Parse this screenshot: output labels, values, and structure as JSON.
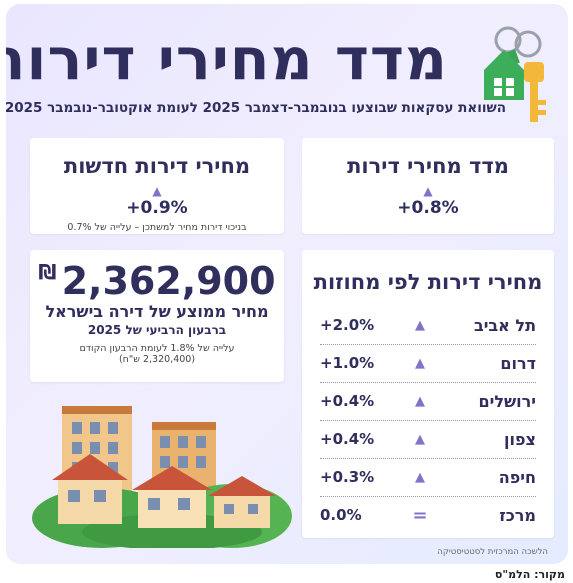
{
  "header": {
    "title": "מדד מחירי דירות",
    "subtitle": "השוואת עסקאות שבוצעו בנובמבר-דצמבר 2025 לעומת אוקטובר-נובמבר 2025"
  },
  "index_panel": {
    "title": "מדד מחירי דירות",
    "value": "+0.8%"
  },
  "new_panel": {
    "title": "מחירי דירות חדשות",
    "value": "+0.9%",
    "note": "בניכוי דירות מחיר למשתכן – עלייה של 0.7%"
  },
  "avg_panel": {
    "price": "2,362,900",
    "currency": "₪",
    "label": "מחיר ממוצע של דירה בישראל",
    "period": "ברבעון הרביעי של 2025",
    "note_line1": "עלייה של 1.8% לעומת הרבעון הקודם",
    "note_line2": "(2,320,400 ש\"ח)"
  },
  "regions_panel": {
    "title": "מחירי דירות לפי מחוזות",
    "rows": [
      {
        "name": "תל אביב",
        "value": "+2.0%",
        "trend": "up"
      },
      {
        "name": "דרום",
        "value": "+1.0%",
        "trend": "up"
      },
      {
        "name": "ירושלים",
        "value": "+0.4%",
        "trend": "up"
      },
      {
        "name": "צפון",
        "value": "+0.4%",
        "trend": "up"
      },
      {
        "name": "חיפה",
        "value": "+0.3%",
        "trend": "up"
      },
      {
        "name": "מרכז",
        "value": "0.0%",
        "trend": "flat"
      }
    ]
  },
  "source_inside": "הלשכה המרכזית לסטטיסטיקה",
  "source_outside": "מקור: הלמ\"ס",
  "icons": {
    "up": "▲",
    "flat": "=",
    "keys": "house-keys-icon",
    "illustration": "houses-illustration"
  },
  "colors": {
    "title": "#2f2e5c",
    "accent": "#8373c8",
    "background_start": "#e9e6ff",
    "background_end": "#e5ecff"
  }
}
